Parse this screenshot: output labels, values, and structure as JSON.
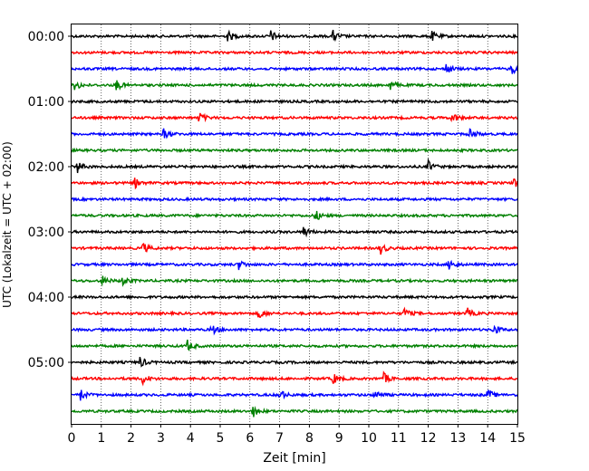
{
  "chart_data": {
    "type": "line",
    "title": "",
    "xlabel": "Zeit  [min]",
    "ylabel": "UTC (Lokalzeit = UTC + 02:00)",
    "xlim": [
      0,
      15
    ],
    "x_ticks": [
      "0",
      "1",
      "2",
      "3",
      "4",
      "5",
      "6",
      "7",
      "8",
      "9",
      "10",
      "11",
      "12",
      "13",
      "14",
      "15"
    ],
    "y_tick_labels": [
      "00:00",
      "01:00",
      "02:00",
      "03:00",
      "04:00",
      "05:00"
    ],
    "row_interval_min": 15,
    "grid": "vertical dotted at each minute",
    "colors": [
      "#000000",
      "#ff0000",
      "#0000ff",
      "#008000"
    ],
    "rows": [
      {
        "utc_start": "00:00",
        "color": "#000000",
        "events_min": [
          5.25,
          6.7,
          8.8,
          12.1
        ]
      },
      {
        "utc_start": "00:15",
        "color": "#ff0000",
        "events_min": []
      },
      {
        "utc_start": "00:30",
        "color": "#0000ff",
        "events_min": [
          12.6,
          14.8
        ]
      },
      {
        "utc_start": "00:45",
        "color": "#008000",
        "events_min": [
          0.1,
          1.5,
          10.7
        ]
      },
      {
        "utc_start": "01:00",
        "color": "#000000",
        "events_min": []
      },
      {
        "utc_start": "01:15",
        "color": "#ff0000",
        "events_min": [
          4.3,
          12.8
        ]
      },
      {
        "utc_start": "01:30",
        "color": "#0000ff",
        "events_min": [
          3.1,
          13.4
        ]
      },
      {
        "utc_start": "01:45",
        "color": "#008000",
        "events_min": []
      },
      {
        "utc_start": "02:00",
        "color": "#000000",
        "events_min": [
          0.2,
          12.0
        ]
      },
      {
        "utc_start": "02:15",
        "color": "#ff0000",
        "events_min": [
          2.1,
          14.9
        ]
      },
      {
        "utc_start": "02:30",
        "color": "#0000ff",
        "events_min": []
      },
      {
        "utc_start": "02:45",
        "color": "#008000",
        "events_min": [
          8.2
        ]
      },
      {
        "utc_start": "03:00",
        "color": "#000000",
        "events_min": [
          7.8
        ]
      },
      {
        "utc_start": "03:15",
        "color": "#ff0000",
        "events_min": [
          2.4,
          10.4
        ]
      },
      {
        "utc_start": "03:30",
        "color": "#0000ff",
        "events_min": [
          5.6,
          12.7
        ]
      },
      {
        "utc_start": "03:45",
        "color": "#008000",
        "events_min": [
          1.0,
          1.7
        ]
      },
      {
        "utc_start": "04:00",
        "color": "#000000",
        "events_min": []
      },
      {
        "utc_start": "04:15",
        "color": "#ff0000",
        "events_min": [
          6.3,
          11.2,
          13.3
        ]
      },
      {
        "utc_start": "04:30",
        "color": "#0000ff",
        "events_min": [
          4.7,
          14.2
        ]
      },
      {
        "utc_start": "04:45",
        "color": "#008000",
        "events_min": [
          3.9
        ]
      },
      {
        "utc_start": "05:00",
        "color": "#000000",
        "events_min": [
          2.3
        ]
      },
      {
        "utc_start": "05:15",
        "color": "#ff0000",
        "events_min": [
          2.4,
          8.8,
          10.5
        ]
      },
      {
        "utc_start": "05:30",
        "color": "#0000ff",
        "events_min": [
          0.3,
          7.0,
          10.2,
          14.0
        ]
      },
      {
        "utc_start": "05:45",
        "color": "#008000",
        "events_min": [
          6.1
        ]
      }
    ]
  }
}
